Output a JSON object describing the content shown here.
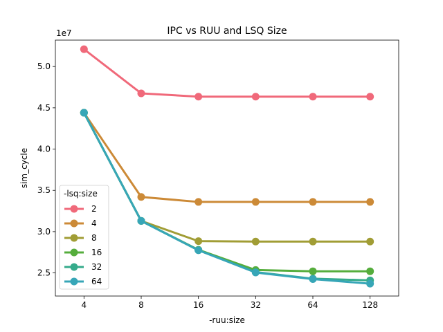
{
  "chart_data": {
    "type": "line",
    "title": "IPC vs RUU and LSQ Size",
    "xlabel": "-ruu:size",
    "ylabel": "sim_cycle",
    "y_offset_label": "1e7",
    "categories": [
      "4",
      "8",
      "16",
      "32",
      "64",
      "128"
    ],
    "yticks": [
      "2.5",
      "3.0",
      "3.5",
      "4.0",
      "4.5",
      "5.0"
    ],
    "ylim": [
      2.22,
      5.32
    ],
    "legend": {
      "title": "-lsq:size",
      "placement": "lower-left"
    },
    "series": [
      {
        "name": "2",
        "color": "#f0697a",
        "values": [
          5.21,
          4.675,
          4.635,
          4.635,
          4.635,
          4.635
        ]
      },
      {
        "name": "4",
        "color": "#cc8a37",
        "values": [
          4.44,
          3.42,
          3.36,
          3.36,
          3.36,
          3.36
        ]
      },
      {
        "name": "8",
        "color": "#a19d35",
        "values": [
          4.44,
          3.13,
          2.885,
          2.88,
          2.88,
          2.88
        ]
      },
      {
        "name": "16",
        "color": "#55ad3c",
        "values": [
          4.44,
          3.13,
          2.78,
          2.535,
          2.52,
          2.52
        ]
      },
      {
        "name": "32",
        "color": "#35ab8b",
        "values": [
          4.44,
          3.13,
          2.775,
          2.51,
          2.43,
          2.41
        ]
      },
      {
        "name": "64",
        "color": "#37a6b7",
        "values": [
          4.44,
          3.13,
          2.775,
          2.505,
          2.425,
          2.37
        ]
      }
    ]
  }
}
